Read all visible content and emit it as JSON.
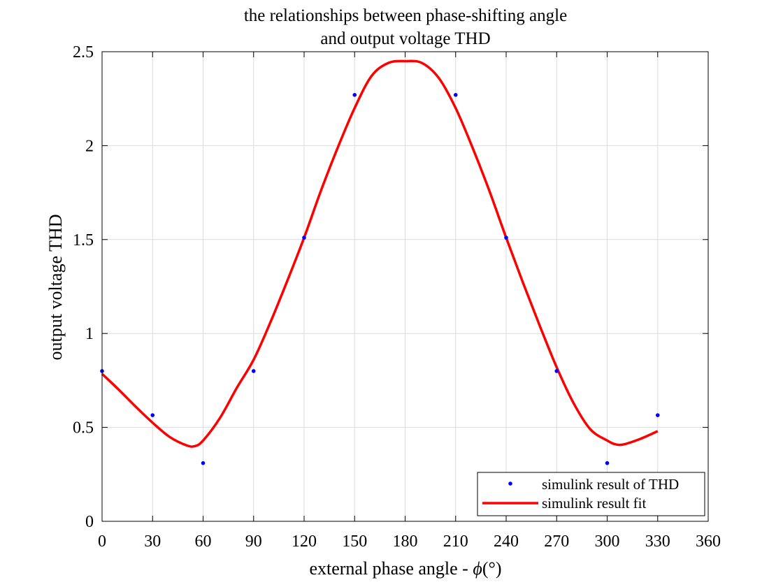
{
  "chart_data": {
    "type": "scatter",
    "title_lines": [
      "the relationships between phase-shifting angle",
      "and output voltage THD"
    ],
    "xlabel_prefix": "external phase angle - ",
    "xlabel_symbol": "ϕ",
    "xlabel_suffix": "(°)",
    "ylabel": "output voltage THD",
    "xlim": [
      0,
      360
    ],
    "ylim": [
      0,
      2.5
    ],
    "x_ticks": [
      0,
      30,
      60,
      90,
      120,
      150,
      180,
      210,
      240,
      270,
      300,
      330,
      360
    ],
    "x_tick_labels": [
      "0",
      "30",
      "60",
      "90",
      "120",
      "150",
      "180",
      "210",
      "240",
      "270",
      "300",
      "330",
      "360"
    ],
    "y_ticks": [
      0,
      0.5,
      1,
      1.5,
      2,
      2.5
    ],
    "y_tick_labels": [
      "0",
      "0.5",
      "1",
      "1.5",
      "2",
      "2.5"
    ],
    "grid": true,
    "legend_position": "bottom-right",
    "colors": {
      "points": "#0000ff",
      "fit": "#ff0000",
      "axis": "#000000",
      "grid": "#dcdcdc"
    },
    "series": [
      {
        "name": "simulink result of THD",
        "kind": "points",
        "x": [
          0,
          30,
          60,
          90,
          120,
          150,
          210,
          240,
          270,
          300,
          330
        ],
        "y": [
          0.8,
          0.565,
          0.31,
          0.8,
          1.51,
          2.27,
          2.27,
          1.51,
          0.8,
          0.31,
          0.565
        ]
      },
      {
        "name": "simulink result fit",
        "kind": "line",
        "x": [
          0,
          10,
          20,
          30,
          40,
          50,
          55,
          60,
          70,
          80,
          90,
          100,
          110,
          120,
          130,
          140,
          150,
          160,
          170,
          180,
          190,
          200,
          210,
          220,
          230,
          240,
          250,
          260,
          270,
          280,
          290,
          300,
          305,
          310,
          320,
          330
        ],
        "y": [
          0.785,
          0.7,
          0.61,
          0.525,
          0.45,
          0.405,
          0.4,
          0.43,
          0.55,
          0.71,
          0.86,
          1.06,
          1.28,
          1.51,
          1.76,
          1.99,
          2.2,
          2.37,
          2.44,
          2.45,
          2.44,
          2.36,
          2.2,
          1.99,
          1.76,
          1.51,
          1.27,
          1.04,
          0.82,
          0.63,
          0.49,
          0.43,
          0.41,
          0.41,
          0.44,
          0.48
        ]
      }
    ]
  }
}
